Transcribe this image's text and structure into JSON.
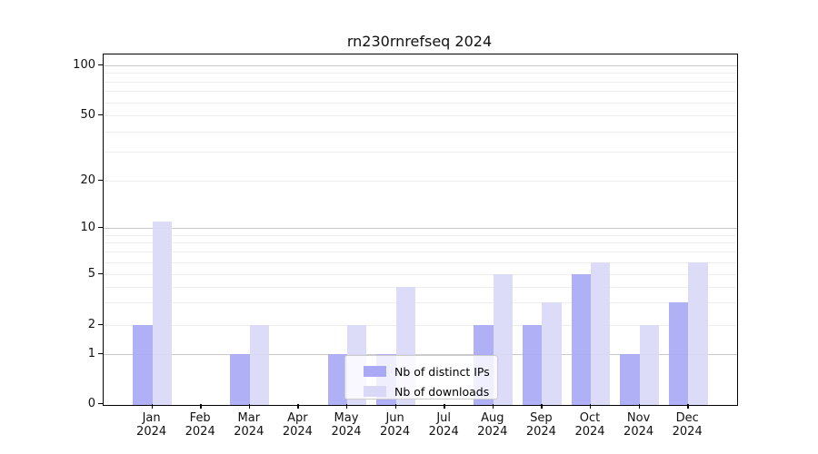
{
  "chart_data": {
    "type": "bar",
    "title": "rn230rnrefseq 2024",
    "categories": [
      "Jan 2024",
      "Feb 2024",
      "Mar 2024",
      "Apr 2024",
      "May 2024",
      "Jun 2024",
      "Jul 2024",
      "Aug 2024",
      "Sep 2024",
      "Oct 2024",
      "Nov 2024",
      "Dec 2024"
    ],
    "series": [
      {
        "name": "Nb of distinct IPs",
        "color": "#a9a9f6",
        "values": [
          2,
          0,
          1,
          0,
          1,
          1,
          0,
          2,
          2,
          5,
          1,
          3
        ]
      },
      {
        "name": "Nb of downloads",
        "color": "#d9d9f7",
        "values": [
          11,
          0,
          2,
          0,
          2,
          4,
          0,
          5,
          3,
          6,
          2,
          6
        ]
      }
    ],
    "xlabel": "",
    "ylabel": "",
    "yscale": "symlog",
    "ylim": [
      0,
      100
    ],
    "y_ticks": [
      0,
      1,
      2,
      5,
      10,
      20,
      50,
      100
    ],
    "y_major_gridlines": [
      1,
      10,
      100
    ],
    "y_minor_gridlines": [
      2,
      3,
      4,
      5,
      6,
      7,
      8,
      9,
      20,
      30,
      40,
      50,
      60,
      70,
      80,
      90
    ],
    "grid": true,
    "legend": {
      "position": "lower center",
      "entries": [
        "Nb of distinct IPs",
        "Nb of downloads"
      ]
    }
  }
}
